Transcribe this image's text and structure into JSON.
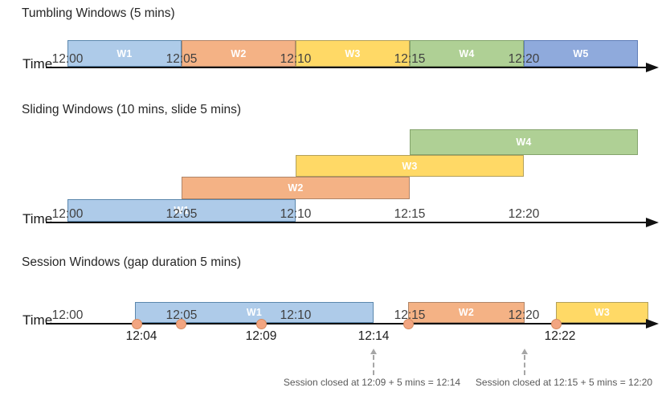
{
  "palette": {
    "blue": {
      "fill": "#AECBE9",
      "border": "#5B87AD"
    },
    "orange": {
      "fill": "#F4B285",
      "border": "#B08568"
    },
    "yellow": {
      "fill": "#FFD966",
      "border": "#B3A05A"
    },
    "green": {
      "fill": "#AFD095",
      "border": "#84A46C"
    },
    "royal": {
      "fill": "#8FAADC",
      "border": "#5E7DB8"
    },
    "event_dot": {
      "fill": "#F2A581",
      "border": "#D68C60"
    },
    "axis": "#111111",
    "tick_text": "#3F3F3F",
    "window_text": "#FFFFFF",
    "annotation_text": "#595959",
    "dashed_arrow": "#A6A6A6"
  },
  "sections": {
    "tumbling": {
      "title": "Tumbling Windows (5 mins)",
      "time_label": "Time",
      "ticks": [
        "12:00",
        "12:05",
        "12:10",
        "12:15",
        "12:20"
      ],
      "windows": [
        {
          "label": "W1",
          "color": "blue",
          "start": "12:00",
          "end": "12:05"
        },
        {
          "label": "W2",
          "color": "orange",
          "start": "12:05",
          "end": "12:10"
        },
        {
          "label": "W3",
          "color": "yellow",
          "start": "12:10",
          "end": "12:15"
        },
        {
          "label": "W4",
          "color": "green",
          "start": "12:15",
          "end": "12:20"
        },
        {
          "label": "W5",
          "color": "royal",
          "start": "12:20",
          "end": "12:25"
        }
      ]
    },
    "sliding": {
      "title": "Sliding Windows (10 mins, slide 5 mins)",
      "time_label": "Time",
      "ticks": [
        "12:00",
        "12:05",
        "12:10",
        "12:15",
        "12:20"
      ],
      "windows": [
        {
          "label": "W1",
          "color": "blue",
          "start": "12:00",
          "end": "12:10"
        },
        {
          "label": "W2",
          "color": "orange",
          "start": "12:05",
          "end": "12:15"
        },
        {
          "label": "W3",
          "color": "yellow",
          "start": "12:10",
          "end": "12:20"
        },
        {
          "label": "W4",
          "color": "green",
          "start": "12:15",
          "end": "12:25"
        }
      ]
    },
    "session": {
      "title": "Session Windows (gap duration 5 mins)",
      "time_label": "Time",
      "ticks": [
        "12:00",
        "12:05",
        "12:10",
        "12:15",
        "12:20"
      ],
      "windows": [
        {
          "label": "W1",
          "color": "blue",
          "start": "12:04",
          "end": "12:14"
        },
        {
          "label": "W2",
          "color": "orange",
          "start": "12:15",
          "end": "12:20"
        },
        {
          "label": "W3",
          "color": "yellow",
          "start": "12:22",
          "end": ""
        }
      ],
      "event_labels": [
        "12:04",
        "12:09",
        "12:14",
        "12:22"
      ],
      "annotations": [
        "Session closed at 12:09 + 5 mins = 12:14",
        "Session closed at 12:15 + 5 mins = 12:20"
      ]
    }
  }
}
